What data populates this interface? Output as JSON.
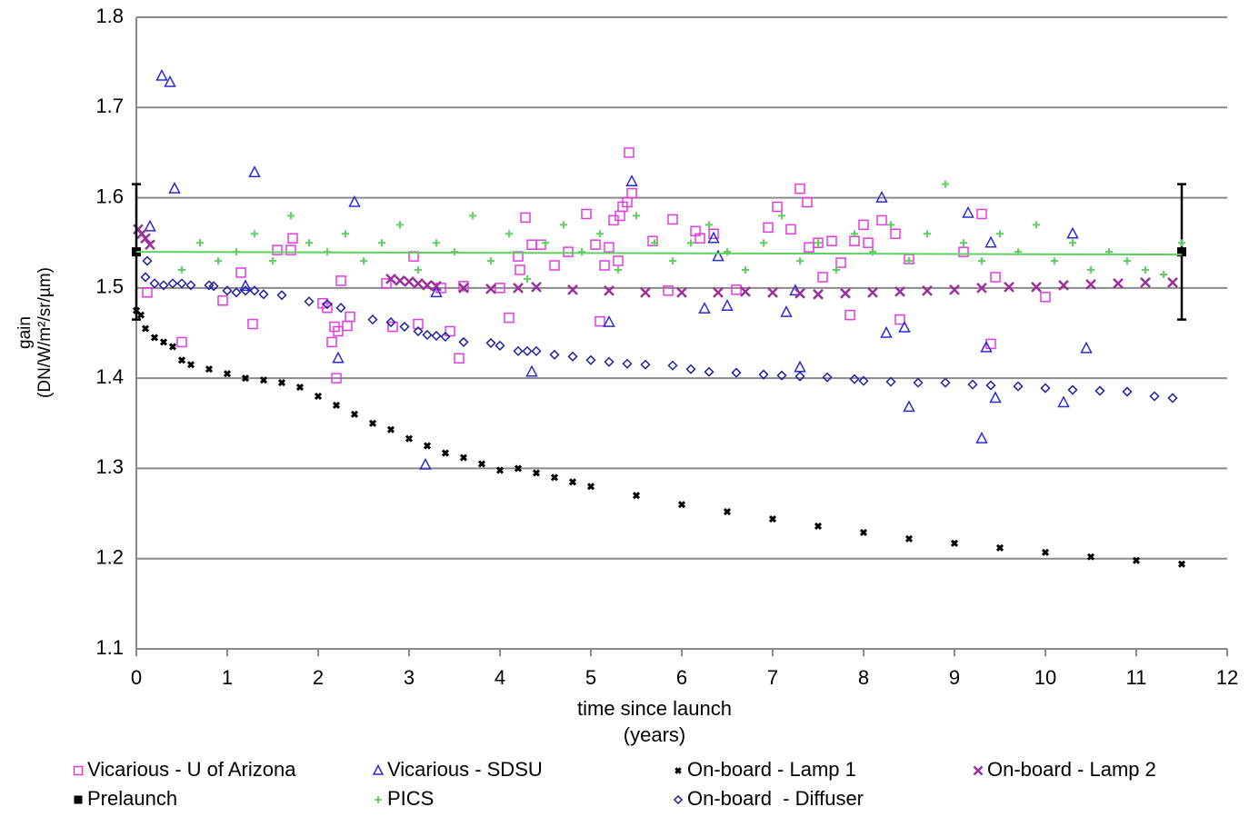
{
  "chart_data": {
    "type": "scatter",
    "x_label": [
      "time since launch",
      "(years)"
    ],
    "y_label": [
      "gain",
      "(DN/W/m²/sr/µm)"
    ],
    "xlim": [
      0,
      12
    ],
    "xticks": [
      0,
      1,
      2,
      3,
      4,
      5,
      6,
      7,
      8,
      9,
      10,
      11,
      12
    ],
    "ylim": [
      1.1,
      1.8
    ],
    "yticks": [
      1.1,
      1.2,
      1.3,
      1.4,
      1.5,
      1.6,
      1.7,
      1.8
    ],
    "grid": true,
    "series": [
      {
        "name": "Vicarious - U of Arizona",
        "color": "#e23be2",
        "marker": "square",
        "x": [
          0.12,
          0.5,
          0.95,
          1.15,
          1.28,
          1.55,
          1.7,
          1.72,
          2.05,
          2.1,
          2.15,
          2.18,
          2.2,
          2.22,
          2.25,
          2.32,
          2.35,
          2.75,
          2.82,
          3.05,
          3.1,
          3.35,
          3.45,
          3.55,
          3.6,
          4.0,
          4.1,
          4.2,
          4.22,
          4.28,
          4.35,
          4.45,
          4.6,
          4.75,
          4.95,
          5.05,
          5.1,
          5.15,
          5.2,
          5.25,
          5.3,
          5.32,
          5.35,
          5.4,
          5.42,
          5.45,
          5.68,
          5.85,
          5.9,
          6.15,
          6.2,
          6.35,
          6.6,
          6.95,
          7.05,
          7.2,
          7.3,
          7.38,
          7.4,
          7.5,
          7.55,
          7.65,
          7.75,
          7.85,
          7.9,
          8.0,
          8.05,
          8.2,
          8.35,
          8.4,
          8.5,
          9.1,
          9.3,
          9.4,
          9.45,
          10.0
        ],
        "values": [
          1.495,
          1.44,
          1.486,
          1.517,
          1.46,
          1.542,
          1.542,
          1.555,
          1.483,
          1.478,
          1.44,
          1.457,
          1.4,
          1.452,
          1.508,
          1.458,
          1.468,
          1.505,
          1.457,
          1.535,
          1.46,
          1.5,
          1.452,
          1.422,
          1.502,
          1.5,
          1.467,
          1.535,
          1.52,
          1.578,
          1.548,
          1.548,
          1.525,
          1.54,
          1.582,
          1.548,
          1.463,
          1.525,
          1.545,
          1.575,
          1.53,
          1.58,
          1.59,
          1.595,
          1.65,
          1.605,
          1.552,
          1.497,
          1.576,
          1.563,
          1.555,
          1.56,
          1.498,
          1.567,
          1.59,
          1.565,
          1.61,
          1.595,
          1.545,
          1.55,
          1.512,
          1.552,
          1.528,
          1.47,
          1.552,
          1.57,
          1.55,
          1.575,
          1.56,
          1.465,
          1.532,
          1.54,
          1.582,
          1.438,
          1.512,
          1.49
        ]
      },
      {
        "name": "Vicarious - SDSU",
        "color": "#2b2bd6",
        "marker": "triangle",
        "x": [
          0.28,
          0.37,
          0.15,
          0.42,
          1.3,
          1.2,
          2.4,
          2.22,
          3.18,
          3.3,
          4.35,
          5.2,
          5.45,
          6.25,
          6.35,
          6.4,
          6.5,
          7.15,
          7.25,
          7.3,
          8.2,
          8.25,
          8.45,
          8.5,
          9.15,
          9.3,
          9.35,
          9.4,
          9.45,
          10.2,
          10.3,
          10.45
        ],
        "values": [
          1.735,
          1.728,
          1.568,
          1.61,
          1.628,
          1.502,
          1.595,
          1.422,
          1.304,
          1.495,
          1.407,
          1.462,
          1.618,
          1.477,
          1.555,
          1.535,
          1.48,
          1.473,
          1.497,
          1.412,
          1.6,
          1.45,
          1.456,
          1.368,
          1.583,
          1.333,
          1.434,
          1.55,
          1.378,
          1.373,
          1.56,
          1.433
        ]
      },
      {
        "name": "On-board - Lamp 1",
        "color": "#000000",
        "marker": "xsmall",
        "x": [
          0,
          0.05,
          0.1,
          0.2,
          0.3,
          0.4,
          0.5,
          0.6,
          0.8,
          1.0,
          1.2,
          1.4,
          1.6,
          1.8,
          2.0,
          2.2,
          2.4,
          2.6,
          2.8,
          3.0,
          3.2,
          3.4,
          3.6,
          3.8,
          4.0,
          4.2,
          4.4,
          4.6,
          4.8,
          5.0,
          5.5,
          6.0,
          6.5,
          7.0,
          7.5,
          8.0,
          8.5,
          9.0,
          9.5,
          10.0,
          10.5,
          11.0,
          11.5
        ],
        "values": [
          1.475,
          1.47,
          1.455,
          1.445,
          1.44,
          1.435,
          1.42,
          1.415,
          1.41,
          1.405,
          1.4,
          1.398,
          1.395,
          1.39,
          1.38,
          1.37,
          1.36,
          1.35,
          1.343,
          1.333,
          1.325,
          1.317,
          1.312,
          1.305,
          1.298,
          1.3,
          1.295,
          1.29,
          1.285,
          1.28,
          1.27,
          1.26,
          1.252,
          1.244,
          1.236,
          1.229,
          1.222,
          1.217,
          1.212,
          1.207,
          1.202,
          1.198,
          1.194
        ]
      },
      {
        "name": "On-board - Lamp 2",
        "color": "#9b2f9b",
        "marker": "xbig",
        "x": [
          0.02,
          0.06,
          0.1,
          0.15,
          2.8,
          2.9,
          3.0,
          3.1,
          3.2,
          3.3,
          3.6,
          3.9,
          4.2,
          4.4,
          4.8,
          5.2,
          5.6,
          6.0,
          6.4,
          6.7,
          7.0,
          7.3,
          7.5,
          7.8,
          8.1,
          8.4,
          8.7,
          9.0,
          9.3,
          9.6,
          9.9,
          10.2,
          10.5,
          10.8,
          11.1,
          11.4
        ],
        "values": [
          1.565,
          1.56,
          1.555,
          1.548,
          1.51,
          1.508,
          1.507,
          1.505,
          1.503,
          1.502,
          1.5,
          1.499,
          1.5,
          1.501,
          1.498,
          1.497,
          1.495,
          1.495,
          1.495,
          1.496,
          1.495,
          1.494,
          1.493,
          1.494,
          1.495,
          1.496,
          1.497,
          1.498,
          1.5,
          1.501,
          1.501,
          1.503,
          1.504,
          1.505,
          1.506,
          1.506
        ]
      },
      {
        "name": "Prelaunch",
        "color": "#000000",
        "marker": "filledsquare",
        "x": [
          0,
          11.5
        ],
        "values": [
          1.54,
          1.54
        ],
        "errors": [
          0.075,
          0.075
        ]
      },
      {
        "name": "PICS",
        "color": "#5fcf5f",
        "marker": "plus",
        "x": [
          0.5,
          0.7,
          0.9,
          1.1,
          1.3,
          1.5,
          1.7,
          1.9,
          2.1,
          2.3,
          2.5,
          2.7,
          2.9,
          3.1,
          3.3,
          3.5,
          3.7,
          3.9,
          4.1,
          4.3,
          4.5,
          4.7,
          4.9,
          5.1,
          5.3,
          5.5,
          5.7,
          5.9,
          6.1,
          6.3,
          6.5,
          6.7,
          6.9,
          7.1,
          7.3,
          7.5,
          7.7,
          7.9,
          8.1,
          8.3,
          8.5,
          8.7,
          8.9,
          9.1,
          9.3,
          9.5,
          9.7,
          9.9,
          10.1,
          10.3,
          10.5,
          10.7,
          10.9,
          11.1,
          11.3,
          11.5
        ],
        "values": [
          1.52,
          1.55,
          1.53,
          1.54,
          1.56,
          1.53,
          1.58,
          1.55,
          1.54,
          1.56,
          1.53,
          1.55,
          1.57,
          1.52,
          1.55,
          1.54,
          1.58,
          1.53,
          1.56,
          1.51,
          1.55,
          1.57,
          1.54,
          1.56,
          1.52,
          1.58,
          1.55,
          1.53,
          1.55,
          1.57,
          1.54,
          1.52,
          1.55,
          1.58,
          1.53,
          1.55,
          1.52,
          1.56,
          1.54,
          1.57,
          1.53,
          1.56,
          1.615,
          1.55,
          1.53,
          1.56,
          1.54,
          1.57,
          1.53,
          1.55,
          1.52,
          1.54,
          1.53,
          1.52,
          1.515,
          1.55
        ],
        "trend_x": [
          0,
          11.5
        ],
        "trend": [
          1.54,
          1.537
        ]
      },
      {
        "name": "On-board  - Diffuser",
        "color": "#1f1fa3",
        "marker": "diamond",
        "x": [
          0.1,
          0.12,
          0.2,
          0.3,
          0.4,
          0.5,
          0.6,
          0.8,
          0.85,
          1.0,
          1.1,
          1.2,
          1.3,
          1.4,
          1.6,
          1.9,
          2.1,
          2.25,
          2.6,
          2.8,
          2.95,
          3.1,
          3.2,
          3.3,
          3.4,
          3.6,
          3.9,
          4.0,
          4.2,
          4.3,
          4.4,
          4.6,
          4.8,
          5.0,
          5.2,
          5.4,
          5.6,
          5.9,
          6.1,
          6.3,
          6.6,
          6.9,
          7.1,
          7.3,
          7.6,
          7.9,
          8.0,
          8.3,
          8.6,
          8.9,
          9.2,
          9.4,
          9.7,
          10.0,
          10.3,
          10.6,
          10.9,
          11.2,
          11.4
        ],
        "values": [
          1.512,
          1.53,
          1.505,
          1.503,
          1.505,
          1.505,
          1.503,
          1.503,
          1.502,
          1.497,
          1.495,
          1.497,
          1.497,
          1.493,
          1.492,
          1.485,
          1.482,
          1.478,
          1.465,
          1.462,
          1.457,
          1.452,
          1.448,
          1.447,
          1.446,
          1.44,
          1.439,
          1.436,
          1.43,
          1.43,
          1.43,
          1.426,
          1.424,
          1.42,
          1.418,
          1.416,
          1.415,
          1.414,
          1.41,
          1.407,
          1.406,
          1.404,
          1.403,
          1.402,
          1.401,
          1.399,
          1.397,
          1.396,
          1.395,
          1.395,
          1.393,
          1.392,
          1.391,
          1.389,
          1.387,
          1.386,
          1.385,
          1.38,
          1.378
        ]
      }
    ]
  }
}
